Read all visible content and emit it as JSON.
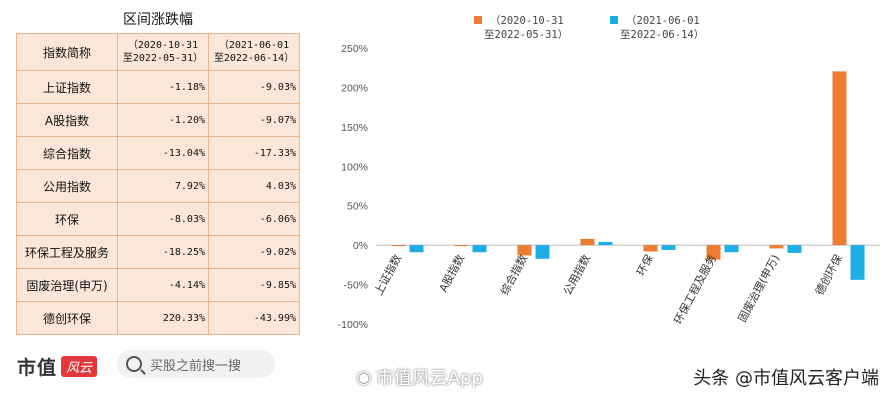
{
  "table": {
    "title": "区间涨跌幅",
    "header": {
      "name": "指数简称",
      "col1_line1": "（2020-10-31",
      "col1_line2": "至2022-05-31）",
      "col2_line1": "（2021-06-01",
      "col2_line2": "至2022-06-14）"
    },
    "rows": [
      {
        "name": "上证指数",
        "v1": "-1.18%",
        "v2": "-9.03%"
      },
      {
        "name": "A股指数",
        "v1": "-1.20%",
        "v2": "-9.07%"
      },
      {
        "name": "综合指数",
        "v1": "-13.04%",
        "v2": "-17.33%"
      },
      {
        "name": "公用指数",
        "v1": "7.92%",
        "v2": "4.03%"
      },
      {
        "name": "环保",
        "v1": "-8.03%",
        "v2": "-6.06%"
      },
      {
        "name": "环保工程及服务",
        "v1": "-18.25%",
        "v2": "-9.02%"
      },
      {
        "name": "固废治理(申万)",
        "v1": "-4.14%",
        "v2": "-9.85%"
      },
      {
        "name": "德创环保",
        "v1": "220.33%",
        "v2": "-43.99%"
      }
    ]
  },
  "chart_data": {
    "type": "bar",
    "categories": [
      "上证指数",
      "A股指数",
      "综合指数",
      "公用指数",
      "环保",
      "环保工程及服务",
      "固废治理(申万)",
      "德创环保"
    ],
    "series": [
      {
        "name": "（2020-10-31 至2022-05-31）",
        "legend_line1": "（2020-10-31",
        "legend_line2": "至2022-05-31）",
        "color": "#ed7d31",
        "values": [
          -1.18,
          -1.2,
          -13.04,
          7.92,
          -8.03,
          -18.25,
          -4.14,
          220.33
        ]
      },
      {
        "name": "（2021-06-01 至2022-06-14）",
        "legend_line1": "（2021-06-01",
        "legend_line2": "至2022-06-14）",
        "color": "#1eaee6",
        "values": [
          -9.03,
          -9.07,
          -17.33,
          4.03,
          -6.06,
          -9.02,
          -9.85,
          -43.99
        ]
      }
    ],
    "yticks": [
      "250%",
      "200%",
      "150%",
      "100%",
      "50%",
      "0%",
      "-50%",
      "-100%"
    ],
    "ylim": [
      -100,
      250
    ],
    "legend_position": "top",
    "grid": false
  },
  "footer": {
    "logo_text": "市值",
    "logo_badge": "风云",
    "search_placeholder": "买股之前搜一搜",
    "weibo_watermark": "市值风云App",
    "credit": "头条 @市值风云客户端"
  }
}
